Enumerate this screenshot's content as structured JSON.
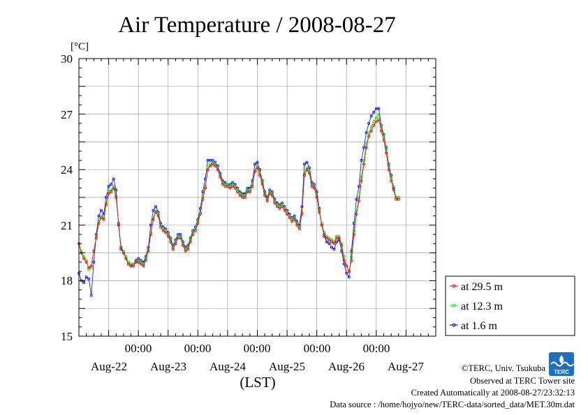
{
  "chart_data": {
    "type": "line",
    "title": "Air Temperature / 2008-08-27",
    "ylabel": "[°C]",
    "xlabel": "(LST)",
    "ylim": [
      15,
      30
    ],
    "yticks": [
      15,
      18,
      21,
      24,
      27,
      30
    ],
    "xlim_hours": [
      0,
      144
    ],
    "x_midnight_ticks": [
      {
        "h": 24,
        "time": "00:00"
      },
      {
        "h": 48,
        "time": "00:00"
      },
      {
        "h": 72,
        "time": "00:00"
      },
      {
        "h": 96,
        "time": "00:00"
      },
      {
        "h": 120,
        "time": "00:00"
      }
    ],
    "day_labels": [
      {
        "h": 12,
        "text": "Aug-22"
      },
      {
        "h": 36,
        "text": "Aug-23"
      },
      {
        "h": 60,
        "text": "Aug-24"
      },
      {
        "h": 84,
        "text": "Aug-25"
      },
      {
        "h": 108,
        "text": "Aug-26"
      },
      {
        "h": 132,
        "text": "Aug-27"
      }
    ],
    "grid": true,
    "legend_position": "right",
    "series": [
      {
        "name": "at 29.5 m",
        "color": "#ff0000"
      },
      {
        "name": "at 12.3 m",
        "color": "#00ee00"
      },
      {
        "name": "at 1.6 m",
        "color": "#0000ff"
      }
    ],
    "x_hours": [
      0,
      1,
      2,
      3,
      4,
      5,
      6,
      7,
      8,
      9,
      10,
      11,
      12,
      13,
      14,
      15,
      16,
      17,
      18,
      19,
      20,
      21,
      22,
      23,
      24,
      25,
      26,
      27,
      28,
      29,
      30,
      31,
      32,
      33,
      34,
      35,
      36,
      37,
      38,
      39,
      40,
      41,
      42,
      43,
      44,
      45,
      46,
      47,
      48,
      49,
      50,
      51,
      52,
      53,
      54,
      55,
      56,
      57,
      58,
      59,
      60,
      61,
      62,
      63,
      64,
      65,
      66,
      67,
      68,
      69,
      70,
      71,
      72,
      73,
      74,
      75,
      76,
      77,
      78,
      79,
      80,
      81,
      82,
      83,
      84,
      85,
      86,
      87,
      88,
      89,
      90,
      91,
      92,
      93,
      94,
      95,
      96,
      97,
      98,
      99,
      100,
      101,
      102,
      103,
      104,
      105,
      106,
      107,
      108,
      109,
      110,
      111,
      112,
      113,
      114,
      115,
      116,
      117,
      118,
      119,
      120,
      121,
      122,
      123,
      124,
      125,
      126,
      127,
      128,
      129,
      130,
      131,
      132,
      133,
      134,
      135,
      136,
      137,
      138,
      139,
      140,
      141,
      142,
      143
    ],
    "values_29_5": [
      20.0,
      19.5,
      19.2,
      19.0,
      18.7,
      18.8,
      19.6,
      20.3,
      21.1,
      21.4,
      21.3,
      22.1,
      22.7,
      22.8,
      23.0,
      22.5,
      21.1,
      19.8,
      19.5,
      19.2,
      18.9,
      18.8,
      18.8,
      19.0,
      19.0,
      18.9,
      18.8,
      19.1,
      19.6,
      20.5,
      21.3,
      21.7,
      21.5,
      20.9,
      20.7,
      20.6,
      20.4,
      20.1,
      19.7,
      20.0,
      20.3,
      20.3,
      19.9,
      19.6,
      19.7,
      20.1,
      20.5,
      20.7,
      21.1,
      21.6,
      22.4,
      23.0,
      24.0,
      24.2,
      24.3,
      24.2,
      24.0,
      23.6,
      23.2,
      23.1,
      23.1,
      23.0,
      23.1,
      23.0,
      22.8,
      22.6,
      22.5,
      22.5,
      22.8,
      22.8,
      23.1,
      23.9,
      24.1,
      23.7,
      23.2,
      22.6,
      22.3,
      22.7,
      22.6,
      22.2,
      22.0,
      21.9,
      22.0,
      21.8,
      21.6,
      21.4,
      21.2,
      21.3,
      21.0,
      20.8,
      21.6,
      23.7,
      24.0,
      23.8,
      23.1,
      23.0,
      22.5,
      21.7,
      21.0,
      20.5,
      20.3,
      20.2,
      20.1,
      20.0,
      20.3,
      20.3,
      19.9,
      19.1,
      18.8,
      18.5,
      19.1,
      20.5,
      21.6,
      22.3,
      23.4,
      24.3,
      25.2,
      25.8,
      26.1,
      26.4,
      26.6,
      26.7,
      26.1,
      25.6,
      24.9,
      24.0,
      23.4,
      22.9,
      22.4,
      22.4
    ],
    "values_12_3": [
      20.0,
      19.6,
      19.3,
      19.1,
      18.6,
      18.7,
      19.6,
      20.4,
      21.2,
      21.5,
      21.4,
      22.2,
      22.8,
      22.9,
      23.1,
      22.6,
      21.1,
      19.8,
      19.6,
      19.3,
      19.0,
      18.9,
      18.9,
      19.0,
      19.1,
      19.0,
      18.9,
      19.2,
      19.7,
      20.6,
      21.4,
      21.8,
      21.6,
      21.0,
      20.8,
      20.7,
      20.5,
      20.2,
      19.8,
      20.1,
      20.4,
      20.4,
      20.0,
      19.7,
      19.8,
      20.2,
      20.6,
      20.8,
      21.2,
      21.7,
      22.5,
      23.1,
      24.1,
      24.3,
      24.4,
      24.3,
      24.1,
      23.7,
      23.3,
      23.2,
      23.2,
      23.1,
      23.2,
      23.1,
      22.9,
      22.7,
      22.6,
      22.6,
      22.9,
      22.9,
      23.2,
      24.0,
      24.2,
      23.8,
      23.3,
      22.7,
      22.4,
      22.8,
      22.7,
      22.3,
      22.1,
      22.0,
      22.1,
      21.9,
      21.7,
      21.5,
      21.3,
      21.4,
      21.1,
      20.9,
      21.7,
      23.8,
      24.1,
      23.9,
      23.2,
      23.1,
      22.6,
      21.8,
      21.1,
      20.6,
      20.4,
      20.3,
      20.2,
      20.1,
      20.4,
      20.4,
      20.0,
      19.3,
      18.8,
      18.5,
      19.3,
      20.7,
      21.8,
      22.5,
      23.6,
      24.5,
      25.4,
      26.0,
      26.3,
      26.6,
      26.8,
      27.0,
      26.3,
      25.8,
      25.1,
      24.2,
      23.6,
      23.1,
      22.5,
      22.5
    ],
    "values_1_6": [
      18.4,
      18.0,
      17.9,
      18.2,
      18.1,
      17.2,
      19.0,
      20.5,
      21.5,
      21.8,
      21.6,
      22.5,
      23.1,
      23.2,
      23.5,
      22.9,
      21.0,
      19.7,
      19.5,
      19.2,
      18.9,
      18.8,
      18.9,
      19.1,
      19.2,
      19.1,
      19.0,
      19.3,
      19.8,
      21.0,
      21.8,
      22.0,
      21.7,
      21.1,
      20.9,
      20.8,
      20.6,
      20.3,
      19.9,
      20.2,
      20.5,
      20.5,
      20.1,
      19.8,
      19.9,
      20.3,
      20.7,
      20.9,
      21.3,
      21.9,
      22.8,
      23.5,
      24.5,
      24.5,
      24.5,
      24.4,
      24.2,
      23.8,
      23.4,
      23.3,
      23.2,
      23.2,
      23.3,
      23.2,
      23.0,
      22.8,
      22.7,
      22.7,
      23.0,
      23.0,
      23.4,
      24.3,
      24.4,
      24.0,
      23.4,
      22.8,
      22.5,
      22.9,
      22.8,
      22.4,
      22.2,
      22.1,
      22.2,
      22.0,
      21.8,
      21.6,
      21.4,
      21.5,
      21.2,
      21.0,
      22.0,
      24.3,
      24.4,
      24.1,
      23.3,
      23.2,
      22.8,
      21.9,
      21.0,
      20.4,
      20.1,
      20.0,
      19.8,
      19.7,
      20.1,
      20.2,
      19.6,
      18.9,
      18.4,
      18.2,
      19.6,
      21.1,
      22.4,
      23.1,
      24.5,
      25.2,
      26.0,
      26.5,
      26.9,
      27.1,
      27.3,
      27.3,
      26.4,
      25.9,
      25.2,
      24.3,
      23.7,
      23.0,
      22.5,
      22.5
    ]
  },
  "y_tick_labels": [
    "15",
    "18",
    "21",
    "24",
    "27",
    "30"
  ],
  "footer": {
    "copyright": "©TERC, Univ. Tsukuba",
    "observed": "Observed at TERC Tower site",
    "created": "Created Automatically at 2008-08-27/23:32:13",
    "source": "Data source : /home/hojyo/new/TERC-data/sorted_data/MET.30m.dat",
    "logo_text": "TERC"
  }
}
